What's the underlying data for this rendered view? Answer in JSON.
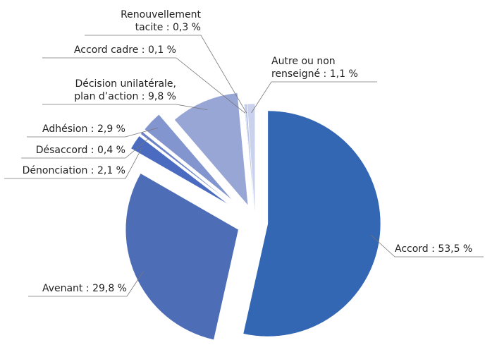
{
  "chart_data": {
    "type": "pie",
    "categories": [
      "Accord",
      "Avenant",
      "Dénonciation",
      "Désaccord",
      "Adhésion",
      "Décision unilatérale,\nplan d’action",
      "Accord cadre",
      "Renouvellement\ntacite",
      "Autre ou non\nrenseigné"
    ],
    "values": [
      53.5,
      29.8,
      2.1,
      0.4,
      2.9,
      9.8,
      0.1,
      0.3,
      1.1
    ],
    "value_labels": [
      "53,5 %",
      "29,8 %",
      "2,1 %",
      "0,4 %",
      "2,9 %",
      "9,8 %",
      "0,1 %",
      "0,3 %",
      "1,1 %"
    ],
    "separator": " : ",
    "colors": [
      "#3366b3",
      "#4e6db7",
      "#4a6bc0",
      "#6b82c7",
      "#8395ce",
      "#98a6d6",
      "#aab6dd",
      "#bcc6e6",
      "#c9d1ec"
    ]
  }
}
